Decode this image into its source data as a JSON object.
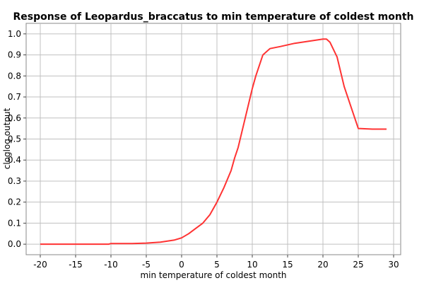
{
  "chart_data": {
    "type": "line",
    "title": "Response of Leopardus_braccatus to min temperature of coldest month",
    "xlabel": "min temperature of coldest month",
    "ylabel": "cloglog output",
    "xlim": [
      -22,
      31
    ],
    "ylim": [
      -0.05,
      1.05
    ],
    "x_ticks": [
      -20,
      -15,
      -10,
      -5,
      0,
      5,
      10,
      15,
      20,
      25,
      30
    ],
    "x_tick_labels": [
      "-20",
      "-15",
      "-10",
      "-5",
      "0",
      "5",
      "10",
      "15",
      "20",
      "25",
      "30"
    ],
    "y_ticks": [
      0.0,
      0.1,
      0.2,
      0.3,
      0.4,
      0.5,
      0.6,
      0.7,
      0.8,
      0.9,
      1.0
    ],
    "y_tick_labels": [
      "0.0",
      "0.1",
      "0.2",
      "0.3",
      "0.4",
      "0.5",
      "0.6",
      "0.7",
      "0.8",
      "0.9",
      "1.0"
    ],
    "grid": true,
    "series": [
      {
        "color": "#ff3333",
        "x": [
          -20,
          -15,
          -10.3,
          -10,
          -7,
          -5,
          -3,
          -1,
          0,
          1,
          2,
          3,
          4,
          5,
          6,
          7,
          7.5,
          8,
          9,
          10,
          10.5,
          11.5,
          12.5,
          14,
          16,
          18,
          20,
          20.5,
          21,
          22,
          23,
          24,
          25,
          27,
          29
        ],
        "y": [
          0,
          0,
          0,
          0.003,
          0.003,
          0.005,
          0.01,
          0.02,
          0.03,
          0.05,
          0.075,
          0.1,
          0.14,
          0.2,
          0.27,
          0.35,
          0.41,
          0.46,
          0.6,
          0.74,
          0.8,
          0.9,
          0.93,
          0.94,
          0.955,
          0.965,
          0.975,
          0.975,
          0.96,
          0.89,
          0.75,
          0.65,
          0.55,
          0.547,
          0.547
        ]
      }
    ]
  }
}
